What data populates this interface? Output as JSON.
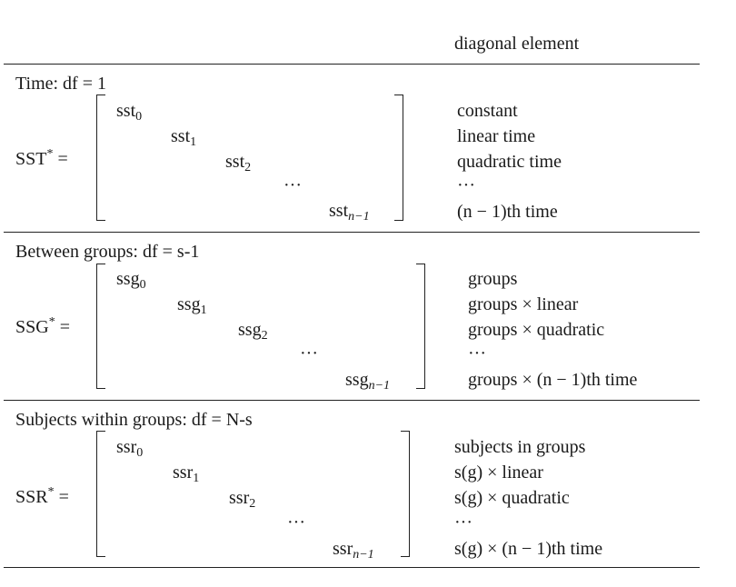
{
  "header": {
    "diagonal_element": "diagonal element"
  },
  "sections": [
    {
      "heading": "Time: df = 1",
      "matrix_name": "SST",
      "elements": [
        {
          "base": "sst",
          "sub": "0"
        },
        {
          "base": "sst",
          "sub": "1"
        },
        {
          "base": "sst",
          "sub": "2"
        },
        {
          "base": "···",
          "sub": ""
        },
        {
          "base": "sst",
          "sub": "n−1"
        }
      ],
      "labels": [
        "constant",
        "linear time",
        "quadratic time",
        "···",
        "(n − 1)th time"
      ]
    },
    {
      "heading": "Between groups: df = s-1",
      "matrix_name": "SSG",
      "elements": [
        {
          "base": "ssg",
          "sub": "0"
        },
        {
          "base": "ssg",
          "sub": "1"
        },
        {
          "base": "ssg",
          "sub": "2"
        },
        {
          "base": "···",
          "sub": ""
        },
        {
          "base": "ssg",
          "sub": "n−1"
        }
      ],
      "labels": [
        "groups",
        "groups × linear",
        "groups × quadratic",
        "···",
        "groups × (n − 1)th time"
      ]
    },
    {
      "heading": "Subjects within groups: df = N-s",
      "matrix_name": "SSR",
      "elements": [
        {
          "base": "ssr",
          "sub": "0"
        },
        {
          "base": "ssr",
          "sub": "1"
        },
        {
          "base": "ssr",
          "sub": "2"
        },
        {
          "base": "···",
          "sub": ""
        },
        {
          "base": "ssr",
          "sub": "n−1"
        }
      ],
      "labels": [
        "subjects in groups",
        "s(g) × linear",
        "s(g) × quadratic",
        "···",
        "s(g) × (n − 1)th time"
      ]
    }
  ],
  "symbols": {
    "star": "*",
    "equals": "="
  }
}
